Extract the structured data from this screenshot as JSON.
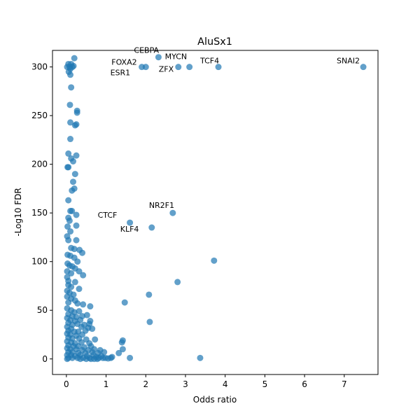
{
  "chart_data": {
    "type": "scatter",
    "title": "AluSx1",
    "xlabel": "Odds ratio",
    "ylabel": "-Log10 FDR",
    "xlim": [
      -0.35,
      7.85
    ],
    "ylim": [
      -16,
      317
    ],
    "xticks": [
      0,
      1,
      2,
      3,
      4,
      5,
      6,
      7
    ],
    "yticks": [
      0,
      50,
      100,
      150,
      200,
      250,
      300
    ],
    "grid": false,
    "marker_color": "#1f77b4",
    "labeled_points": [
      {
        "label": "SNAI2",
        "x": 7.48,
        "y": 300
      },
      {
        "label": "TCF4",
        "x": 3.83,
        "y": 300
      },
      {
        "label": "MYCN",
        "x": 3.1,
        "y": 300
      },
      {
        "label": "ZFX",
        "x": 2.82,
        "y": 300
      },
      {
        "label": "CEBPA",
        "x": 2.32,
        "y": 310
      },
      {
        "label": "FOXA2",
        "x": 2.0,
        "y": 300
      },
      {
        "label": "ESR1",
        "x": 1.9,
        "y": 300
      },
      {
        "label": "NR2F1",
        "x": 2.68,
        "y": 150
      },
      {
        "label": "CTCF",
        "x": 1.6,
        "y": 140
      },
      {
        "label": "KLF4",
        "x": 2.15,
        "y": 135
      }
    ],
    "points": [
      {
        "x": 3.72,
        "y": 101
      },
      {
        "x": 2.8,
        "y": 79
      },
      {
        "x": 2.08,
        "y": 66
      },
      {
        "x": 1.47,
        "y": 58
      },
      {
        "x": 2.1,
        "y": 38
      },
      {
        "x": 3.37,
        "y": 1
      },
      {
        "x": 1.6,
        "y": 1
      },
      {
        "x": 1.42,
        "y": 19
      },
      {
        "x": 1.4,
        "y": 17
      },
      {
        "x": 1.42,
        "y": 10
      },
      {
        "x": 1.32,
        "y": 6
      },
      {
        "x": 1.15,
        "y": 2
      },
      {
        "x": 1.12,
        "y": 1
      },
      {
        "x": 1.05,
        "y": 0.5
      },
      {
        "x": 0.98,
        "y": 1
      },
      {
        "x": 0.2,
        "y": 309
      },
      {
        "x": 0.05,
        "y": 303
      },
      {
        "x": 0.12,
        "y": 303
      },
      {
        "x": 0.18,
        "y": 301
      },
      {
        "x": 0.02,
        "y": 300
      },
      {
        "x": 0.08,
        "y": 300
      },
      {
        "x": 0.15,
        "y": 300
      },
      {
        "x": 0.1,
        "y": 298
      },
      {
        "x": 0.06,
        "y": 295
      },
      {
        "x": 0.1,
        "y": 292
      },
      {
        "x": 0.12,
        "y": 279
      },
      {
        "x": 0.09,
        "y": 261
      },
      {
        "x": 0.27,
        "y": 255
      },
      {
        "x": 0.27,
        "y": 253
      },
      {
        "x": 0.1,
        "y": 243
      },
      {
        "x": 0.22,
        "y": 240
      },
      {
        "x": 0.25,
        "y": 241
      },
      {
        "x": 0.1,
        "y": 226
      },
      {
        "x": 0.05,
        "y": 211
      },
      {
        "x": 0.25,
        "y": 209
      },
      {
        "x": 0.12,
        "y": 206
      },
      {
        "x": 0.17,
        "y": 203
      },
      {
        "x": 0.03,
        "y": 197
      },
      {
        "x": 0.05,
        "y": 197
      },
      {
        "x": 0.22,
        "y": 190
      },
      {
        "x": 0.17,
        "y": 182
      },
      {
        "x": 0.2,
        "y": 175
      },
      {
        "x": 0.14,
        "y": 173
      },
      {
        "x": 0.05,
        "y": 163
      },
      {
        "x": 0.1,
        "y": 152
      },
      {
        "x": 0.14,
        "y": 152
      },
      {
        "x": 0.25,
        "y": 148
      },
      {
        "x": 0.05,
        "y": 145
      },
      {
        "x": 0.08,
        "y": 142
      },
      {
        "x": 0.03,
        "y": 136
      },
      {
        "x": 0.25,
        "y": 137
      },
      {
        "x": 0.1,
        "y": 131
      },
      {
        "x": 0.02,
        "y": 126
      },
      {
        "x": 0.05,
        "y": 122
      },
      {
        "x": 0.25,
        "y": 122
      },
      {
        "x": 0.12,
        "y": 114
      },
      {
        "x": 0.2,
        "y": 113
      },
      {
        "x": 0.33,
        "y": 112
      },
      {
        "x": 0.4,
        "y": 109
      },
      {
        "x": 0.03,
        "y": 107
      },
      {
        "x": 0.1,
        "y": 106
      },
      {
        "x": 0.2,
        "y": 104
      },
      {
        "x": 0.28,
        "y": 100
      },
      {
        "x": 0.03,
        "y": 98
      },
      {
        "x": 0.08,
        "y": 96
      },
      {
        "x": 0.15,
        "y": 95
      },
      {
        "x": 0.22,
        "y": 93
      },
      {
        "x": 0.02,
        "y": 90
      },
      {
        "x": 0.12,
        "y": 88
      },
      {
        "x": 0.32,
        "y": 90
      },
      {
        "x": 0.42,
        "y": 86
      },
      {
        "x": 0.02,
        "y": 84
      },
      {
        "x": 0.05,
        "y": 80
      },
      {
        "x": 0.22,
        "y": 79
      },
      {
        "x": 0.05,
        "y": 76
      },
      {
        "x": 0.12,
        "y": 74
      },
      {
        "x": 0.32,
        "y": 72
      },
      {
        "x": 0.02,
        "y": 70
      },
      {
        "x": 0.08,
        "y": 68
      },
      {
        "x": 0.18,
        "y": 66
      },
      {
        "x": 0.02,
        "y": 64
      },
      {
        "x": 0.12,
        "y": 62
      },
      {
        "x": 0.22,
        "y": 60
      },
      {
        "x": 0.05,
        "y": 58
      },
      {
        "x": 0.28,
        "y": 57
      },
      {
        "x": 0.42,
        "y": 56
      },
      {
        "x": 0.6,
        "y": 54
      },
      {
        "x": 0.02,
        "y": 52
      },
      {
        "x": 0.12,
        "y": 50
      },
      {
        "x": 0.2,
        "y": 48
      },
      {
        "x": 0.32,
        "y": 49
      },
      {
        "x": 0.05,
        "y": 46
      },
      {
        "x": 0.15,
        "y": 44
      },
      {
        "x": 0.25,
        "y": 43
      },
      {
        "x": 0.4,
        "y": 44
      },
      {
        "x": 0.52,
        "y": 45
      },
      {
        "x": 0.02,
        "y": 42
      },
      {
        "x": 0.1,
        "y": 40
      },
      {
        "x": 0.22,
        "y": 39
      },
      {
        "x": 0.35,
        "y": 40
      },
      {
        "x": 0.6,
        "y": 39
      },
      {
        "x": 0.05,
        "y": 37
      },
      {
        "x": 0.15,
        "y": 35
      },
      {
        "x": 0.28,
        "y": 36
      },
      {
        "x": 0.45,
        "y": 35
      },
      {
        "x": 0.58,
        "y": 36
      },
      {
        "x": 0.02,
        "y": 33
      },
      {
        "x": 0.12,
        "y": 31
      },
      {
        "x": 0.38,
        "y": 33
      },
      {
        "x": 0.55,
        "y": 32
      },
      {
        "x": 0.65,
        "y": 31
      },
      {
        "x": 0.05,
        "y": 29
      },
      {
        "x": 0.2,
        "y": 28
      },
      {
        "x": 0.3,
        "y": 28
      },
      {
        "x": 0.48,
        "y": 29
      },
      {
        "x": 0.02,
        "y": 26
      },
      {
        "x": 0.1,
        "y": 25
      },
      {
        "x": 0.25,
        "y": 24
      },
      {
        "x": 0.4,
        "y": 25
      },
      {
        "x": 0.05,
        "y": 22
      },
      {
        "x": 0.15,
        "y": 21
      },
      {
        "x": 0.32,
        "y": 21
      },
      {
        "x": 0.5,
        "y": 20
      },
      {
        "x": 0.72,
        "y": 20
      },
      {
        "x": 0.02,
        "y": 18
      },
      {
        "x": 0.12,
        "y": 17
      },
      {
        "x": 0.22,
        "y": 16
      },
      {
        "x": 0.38,
        "y": 17
      },
      {
        "x": 0.58,
        "y": 16
      },
      {
        "x": 0.05,
        "y": 14
      },
      {
        "x": 0.18,
        "y": 13
      },
      {
        "x": 0.3,
        "y": 13
      },
      {
        "x": 0.45,
        "y": 12
      },
      {
        "x": 0.62,
        "y": 13
      },
      {
        "x": 0.02,
        "y": 11
      },
      {
        "x": 0.1,
        "y": 10
      },
      {
        "x": 0.25,
        "y": 10
      },
      {
        "x": 0.4,
        "y": 9
      },
      {
        "x": 0.55,
        "y": 9
      },
      {
        "x": 0.7,
        "y": 10
      },
      {
        "x": 0.85,
        "y": 9
      },
      {
        "x": 0.05,
        "y": 7
      },
      {
        "x": 0.15,
        "y": 7
      },
      {
        "x": 0.3,
        "y": 6
      },
      {
        "x": 0.48,
        "y": 6
      },
      {
        "x": 0.65,
        "y": 7
      },
      {
        "x": 0.8,
        "y": 6
      },
      {
        "x": 0.95,
        "y": 7
      },
      {
        "x": 0.02,
        "y": 4
      },
      {
        "x": 0.12,
        "y": 4
      },
      {
        "x": 0.22,
        "y": 3
      },
      {
        "x": 0.35,
        "y": 4
      },
      {
        "x": 0.52,
        "y": 3
      },
      {
        "x": 0.68,
        "y": 4
      },
      {
        "x": 0.75,
        "y": 2
      },
      {
        "x": 0.88,
        "y": 3
      },
      {
        "x": 0.92,
        "y": 1
      },
      {
        "x": 0.05,
        "y": 1
      },
      {
        "x": 0.15,
        "y": 1
      },
      {
        "x": 0.28,
        "y": 1
      },
      {
        "x": 0.42,
        "y": 1
      },
      {
        "x": 0.58,
        "y": 1
      },
      {
        "x": 0.62,
        "y": 0
      },
      {
        "x": 0.78,
        "y": 0
      },
      {
        "x": 0.82,
        "y": 1
      },
      {
        "x": 0.02,
        "y": 0
      },
      {
        "x": 0.35,
        "y": 0
      },
      {
        "x": 0.5,
        "y": 0
      },
      {
        "x": 0.7,
        "y": 0
      }
    ]
  }
}
